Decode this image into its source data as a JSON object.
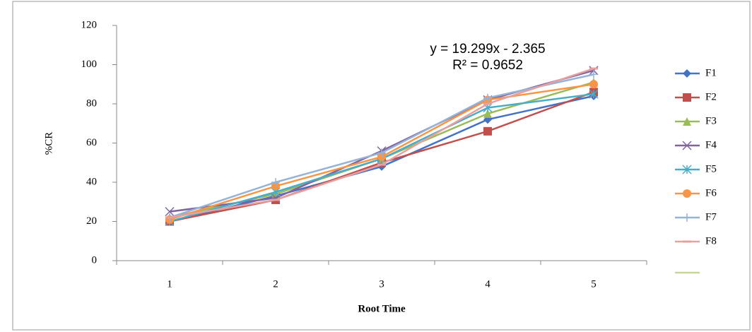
{
  "chart_data": {
    "type": "line",
    "x_label": "Root Time",
    "y_label": "%CR",
    "annotations": [
      "y = 19.299x - 2.365",
      "R² = 0.9652"
    ],
    "categories": [
      "1",
      "2",
      "3",
      "4",
      "5"
    ],
    "ylim": [
      0,
      120
    ],
    "yticks": [
      0,
      20,
      40,
      60,
      80,
      100,
      120
    ],
    "series": [
      {
        "name": "F1",
        "color": "#4472c4",
        "marker": "diamond",
        "values": [
          20,
          33,
          48,
          72,
          84
        ]
      },
      {
        "name": "F2",
        "color": "#c0504d",
        "marker": "square",
        "values": [
          20,
          31,
          50,
          66,
          86
        ]
      },
      {
        "name": "F3",
        "color": "#9bbb59",
        "marker": "triangle",
        "values": [
          22,
          34,
          52,
          75,
          91
        ]
      },
      {
        "name": "F4",
        "color": "#8064a2",
        "marker": "x",
        "values": [
          25,
          32,
          56,
          82,
          97
        ]
      },
      {
        "name": "F5",
        "color": "#4bacc6",
        "marker": "star",
        "values": [
          20,
          35,
          52,
          78,
          85
        ]
      },
      {
        "name": "F6",
        "color": "#f79646",
        "marker": "circle",
        "values": [
          21,
          38,
          53,
          82,
          90
        ]
      },
      {
        "name": "F7",
        "color": "#95b3d7",
        "marker": "plus",
        "values": [
          22,
          40,
          55,
          83,
          95
        ]
      },
      {
        "name": "F8",
        "color": "#e6a0a0",
        "marker": "dash",
        "values": [
          22,
          31,
          49,
          80,
          98
        ]
      }
    ]
  }
}
